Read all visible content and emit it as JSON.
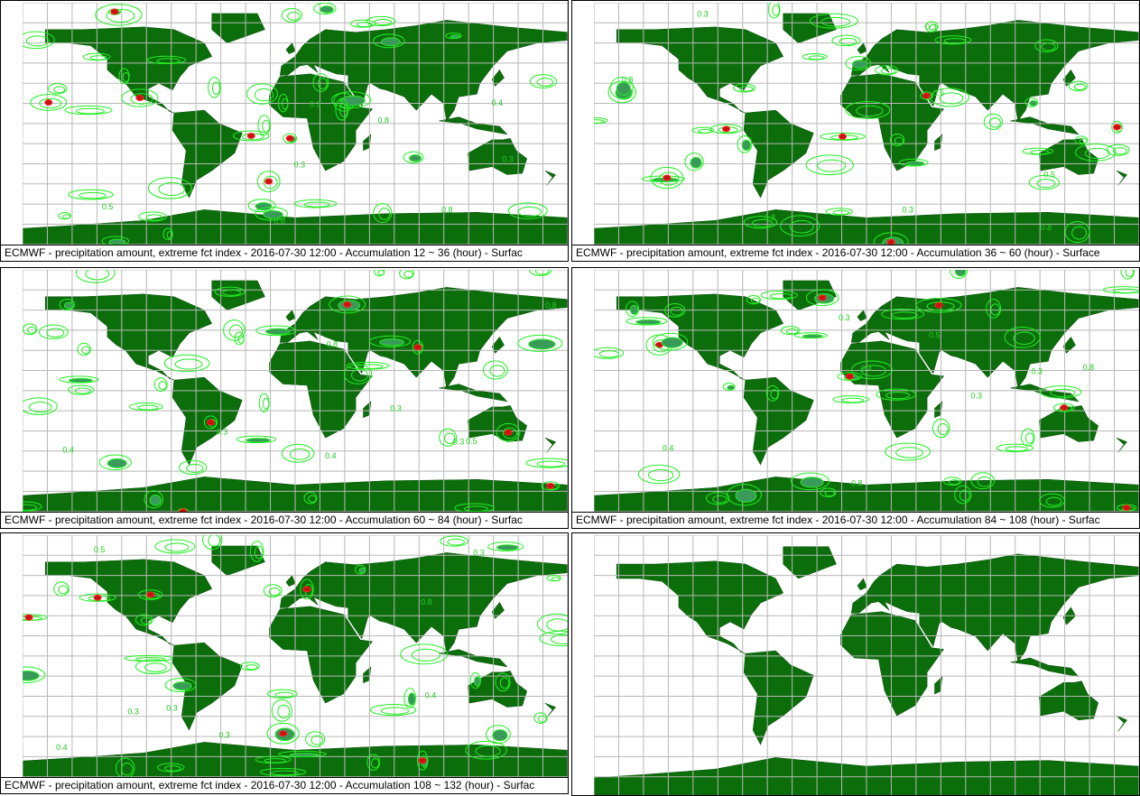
{
  "panels": [
    {
      "caption": "ECMWF - precipitation amount, extreme fct index - 2016-07-30 12:00 - Accumulation  12 ~  36 (hour) - Surfac",
      "contour_labels": [
        "0.3",
        "0.5",
        "0.8",
        "0.3",
        "0.8",
        "0.4",
        "0.3",
        "0.8"
      ]
    },
    {
      "caption": "ECMWF - precipitation amount, extreme fct index - 2016-07-30 12:00 - Accumulation  36 ~  60 (hour) - Surface",
      "contour_labels": [
        "0.3",
        "0.8",
        "0.5",
        "0.3",
        "0.8",
        "0.3",
        "0.6",
        "0.8"
      ]
    },
    {
      "caption": "ECMWF - precipitation amount, extreme fct index - 2016-07-30 12:00 - Accumulation  60 ~  84 (hour) - Surfac",
      "contour_labels": [
        "0.3",
        "0.4",
        "0.8",
        "0.3",
        "0.5",
        "0.3",
        "0.4",
        "0.8"
      ]
    },
    {
      "caption": "ECMWF - precipitation amount, extreme fct index - 2016-07-30 12:00 - Accumulation  84 ~ 108 (hour) - Surfac",
      "contour_labels": [
        "0.3",
        "0.4",
        "0.8",
        "0.3",
        "0.5",
        "0.3",
        "0.4",
        "0.8"
      ]
    },
    {
      "caption": "ECMWF - precipitation amount, extreme fct index - 2016-07-30 12:00 - Accumulation 108 ~ 132 (hour) - Surfac",
      "contour_labels": [
        "0.3",
        "0.4",
        "0.3",
        "0.5",
        "0.3",
        "0.4",
        "0.3",
        "0.8"
      ]
    },
    {
      "caption": null,
      "contour_labels": []
    }
  ]
}
